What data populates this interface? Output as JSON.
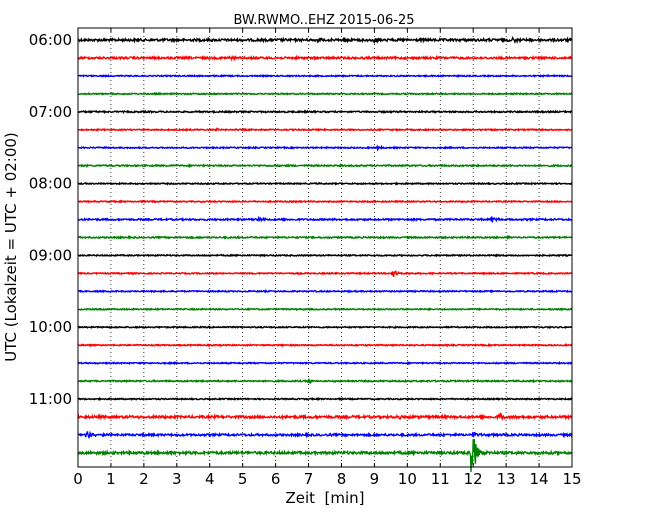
{
  "chart_data": {
    "type": "line",
    "title": "BW.RWMO..EHZ 2015-06-25",
    "xlabel": "Zeit  [min]",
    "ylabel": "UTC (Lokalzeit = UTC + 02:00)",
    "xlim": [
      0,
      15
    ],
    "x_ticks": [
      "0",
      "1",
      "2",
      "3",
      "4",
      "5",
      "6",
      "7",
      "8",
      "9",
      "10",
      "11",
      "12",
      "13",
      "14",
      "15"
    ],
    "y_tick_labels": [
      "06:00",
      "07:00",
      "08:00",
      "09:00",
      "10:00",
      "11:00"
    ],
    "grid": "vertical dotted",
    "trace_colors": [
      "#000000",
      "#ff0000",
      "#0000ff",
      "#008000"
    ],
    "traces": [
      {
        "start": "06:00",
        "color": "#000000",
        "noise": 1.2,
        "events": [
          {
            "t": 7.3,
            "amp": 3
          },
          {
            "t": 8.05,
            "amp": 4
          },
          {
            "t": 9.0,
            "amp": 3
          },
          {
            "t": 13.2,
            "amp": 3
          }
        ]
      },
      {
        "start": "06:15",
        "color": "#ff0000",
        "noise": 1.0,
        "events": [
          {
            "t": 4.6,
            "amp": 2.5
          }
        ]
      },
      {
        "start": "06:30",
        "color": "#0000ff",
        "noise": 0.6,
        "events": []
      },
      {
        "start": "06:45",
        "color": "#008000",
        "noise": 0.6,
        "events": []
      },
      {
        "start": "07:00",
        "color": "#000000",
        "noise": 0.7,
        "events": []
      },
      {
        "start": "07:15",
        "color": "#ff0000",
        "noise": 0.6,
        "events": [
          {
            "t": 4.2,
            "amp": 2
          }
        ]
      },
      {
        "start": "07:30",
        "color": "#0000ff",
        "noise": 0.6,
        "events": [
          {
            "t": 9.1,
            "amp": 2
          }
        ]
      },
      {
        "start": "07:45",
        "color": "#008000",
        "noise": 0.7,
        "events": []
      },
      {
        "start": "08:00",
        "color": "#000000",
        "noise": 0.6,
        "events": []
      },
      {
        "start": "08:15",
        "color": "#ff0000",
        "noise": 0.6,
        "events": []
      },
      {
        "start": "08:30",
        "color": "#0000ff",
        "noise": 0.8,
        "events": [
          {
            "t": 5.45,
            "amp": 3
          },
          {
            "t": 12.55,
            "amp": 3
          }
        ]
      },
      {
        "start": "08:45",
        "color": "#008000",
        "noise": 0.7,
        "events": [
          {
            "t": 13.0,
            "amp": 2
          }
        ]
      },
      {
        "start": "09:00",
        "color": "#000000",
        "noise": 0.6,
        "events": []
      },
      {
        "start": "09:15",
        "color": "#ff0000",
        "noise": 0.6,
        "events": [
          {
            "t": 9.55,
            "amp": 6
          }
        ]
      },
      {
        "start": "09:30",
        "color": "#0000ff",
        "noise": 0.6,
        "events": []
      },
      {
        "start": "09:45",
        "color": "#008000",
        "noise": 0.6,
        "events": []
      },
      {
        "start": "10:00",
        "color": "#000000",
        "noise": 0.6,
        "events": []
      },
      {
        "start": "10:15",
        "color": "#ff0000",
        "noise": 0.6,
        "events": []
      },
      {
        "start": "10:30",
        "color": "#0000ff",
        "noise": 0.6,
        "events": []
      },
      {
        "start": "10:45",
        "color": "#008000",
        "noise": 0.7,
        "events": [
          {
            "t": 7.0,
            "amp": 2
          }
        ]
      },
      {
        "start": "11:00",
        "color": "#000000",
        "noise": 0.6,
        "events": []
      },
      {
        "start": "11:15",
        "color": "#ff0000",
        "noise": 1.2,
        "events": [
          {
            "t": 9.7,
            "amp": 2.5
          },
          {
            "t": 12.8,
            "amp": 5
          }
        ]
      },
      {
        "start": "11:30",
        "color": "#0000ff",
        "noise": 1.0,
        "events": [
          {
            "t": 0.25,
            "amp": 6
          },
          {
            "t": 12.0,
            "amp": 3
          }
        ]
      },
      {
        "start": "11:45",
        "color": "#008000",
        "noise": 1.3,
        "events": [
          {
            "t": 11.95,
            "amp": 32
          }
        ]
      }
    ]
  }
}
